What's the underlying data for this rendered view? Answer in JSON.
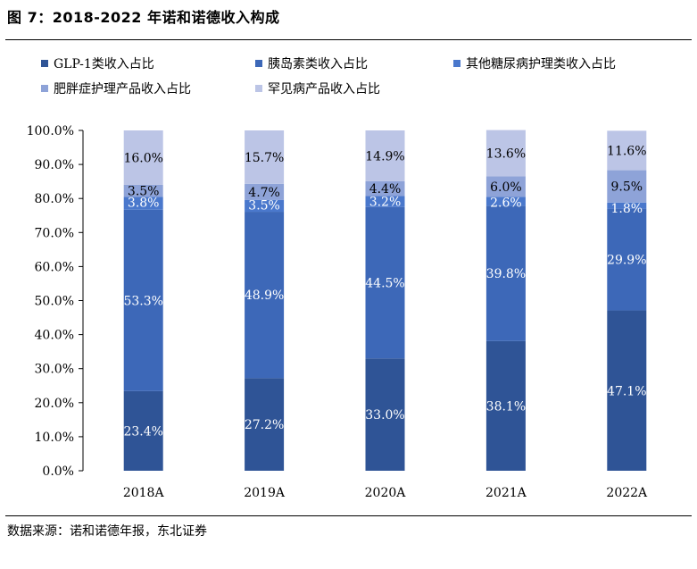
{
  "figure_title": "图 7：2018-2022 年诺和诺德收入构成",
  "source": "数据来源：诺和诺德年报，东北证券",
  "chart_data": {
    "type": "bar",
    "stacked": true,
    "categories": [
      "2018A",
      "2019A",
      "2020A",
      "2021A",
      "2022A"
    ],
    "ylim": [
      0,
      100
    ],
    "yticks": [
      "0.0%",
      "10.0%",
      "20.0%",
      "30.0%",
      "40.0%",
      "50.0%",
      "60.0%",
      "70.0%",
      "80.0%",
      "90.0%",
      "100.0%"
    ],
    "legend_position": "top",
    "series": [
      {
        "name": "GLP-1类收入占比",
        "color": "#2f5496",
        "label_color": "#ffffff",
        "values": [
          23.4,
          27.2,
          33.0,
          38.1,
          47.1
        ],
        "labels": [
          "23.4%",
          "27.2%",
          "33.0%",
          "38.1%",
          "47.1%"
        ]
      },
      {
        "name": "胰岛素类收入占比",
        "color": "#3d68b8",
        "label_color": "#ffffff",
        "values": [
          53.3,
          48.9,
          44.5,
          39.8,
          29.9
        ],
        "labels": [
          "53.3%",
          "48.9%",
          "44.5%",
          "39.8%",
          "29.9%"
        ]
      },
      {
        "name": "其他糖尿病护理类收入占比",
        "color": "#4a78cc",
        "label_color": "#ffffff",
        "values": [
          3.8,
          3.5,
          3.2,
          2.6,
          1.8
        ],
        "labels": [
          "3.8%",
          "3.5%",
          "3.2%",
          "2.6%",
          "1.8%"
        ]
      },
      {
        "name": "肥胖症护理产品收入占比",
        "color": "#8ea3d8",
        "label_color": "#000000",
        "values": [
          3.5,
          4.7,
          4.4,
          6.0,
          9.5
        ],
        "labels": [
          "3.5%",
          "4.7%",
          "4.4%",
          "6.0%",
          "9.5%"
        ]
      },
      {
        "name": "罕见病产品收入占比",
        "color": "#bcc5e6",
        "label_color": "#000000",
        "values": [
          16.0,
          15.7,
          14.9,
          13.6,
          11.6
        ],
        "labels": [
          "16.0%",
          "15.7%",
          "14.9%",
          "13.6%",
          "11.6%"
        ]
      }
    ]
  }
}
